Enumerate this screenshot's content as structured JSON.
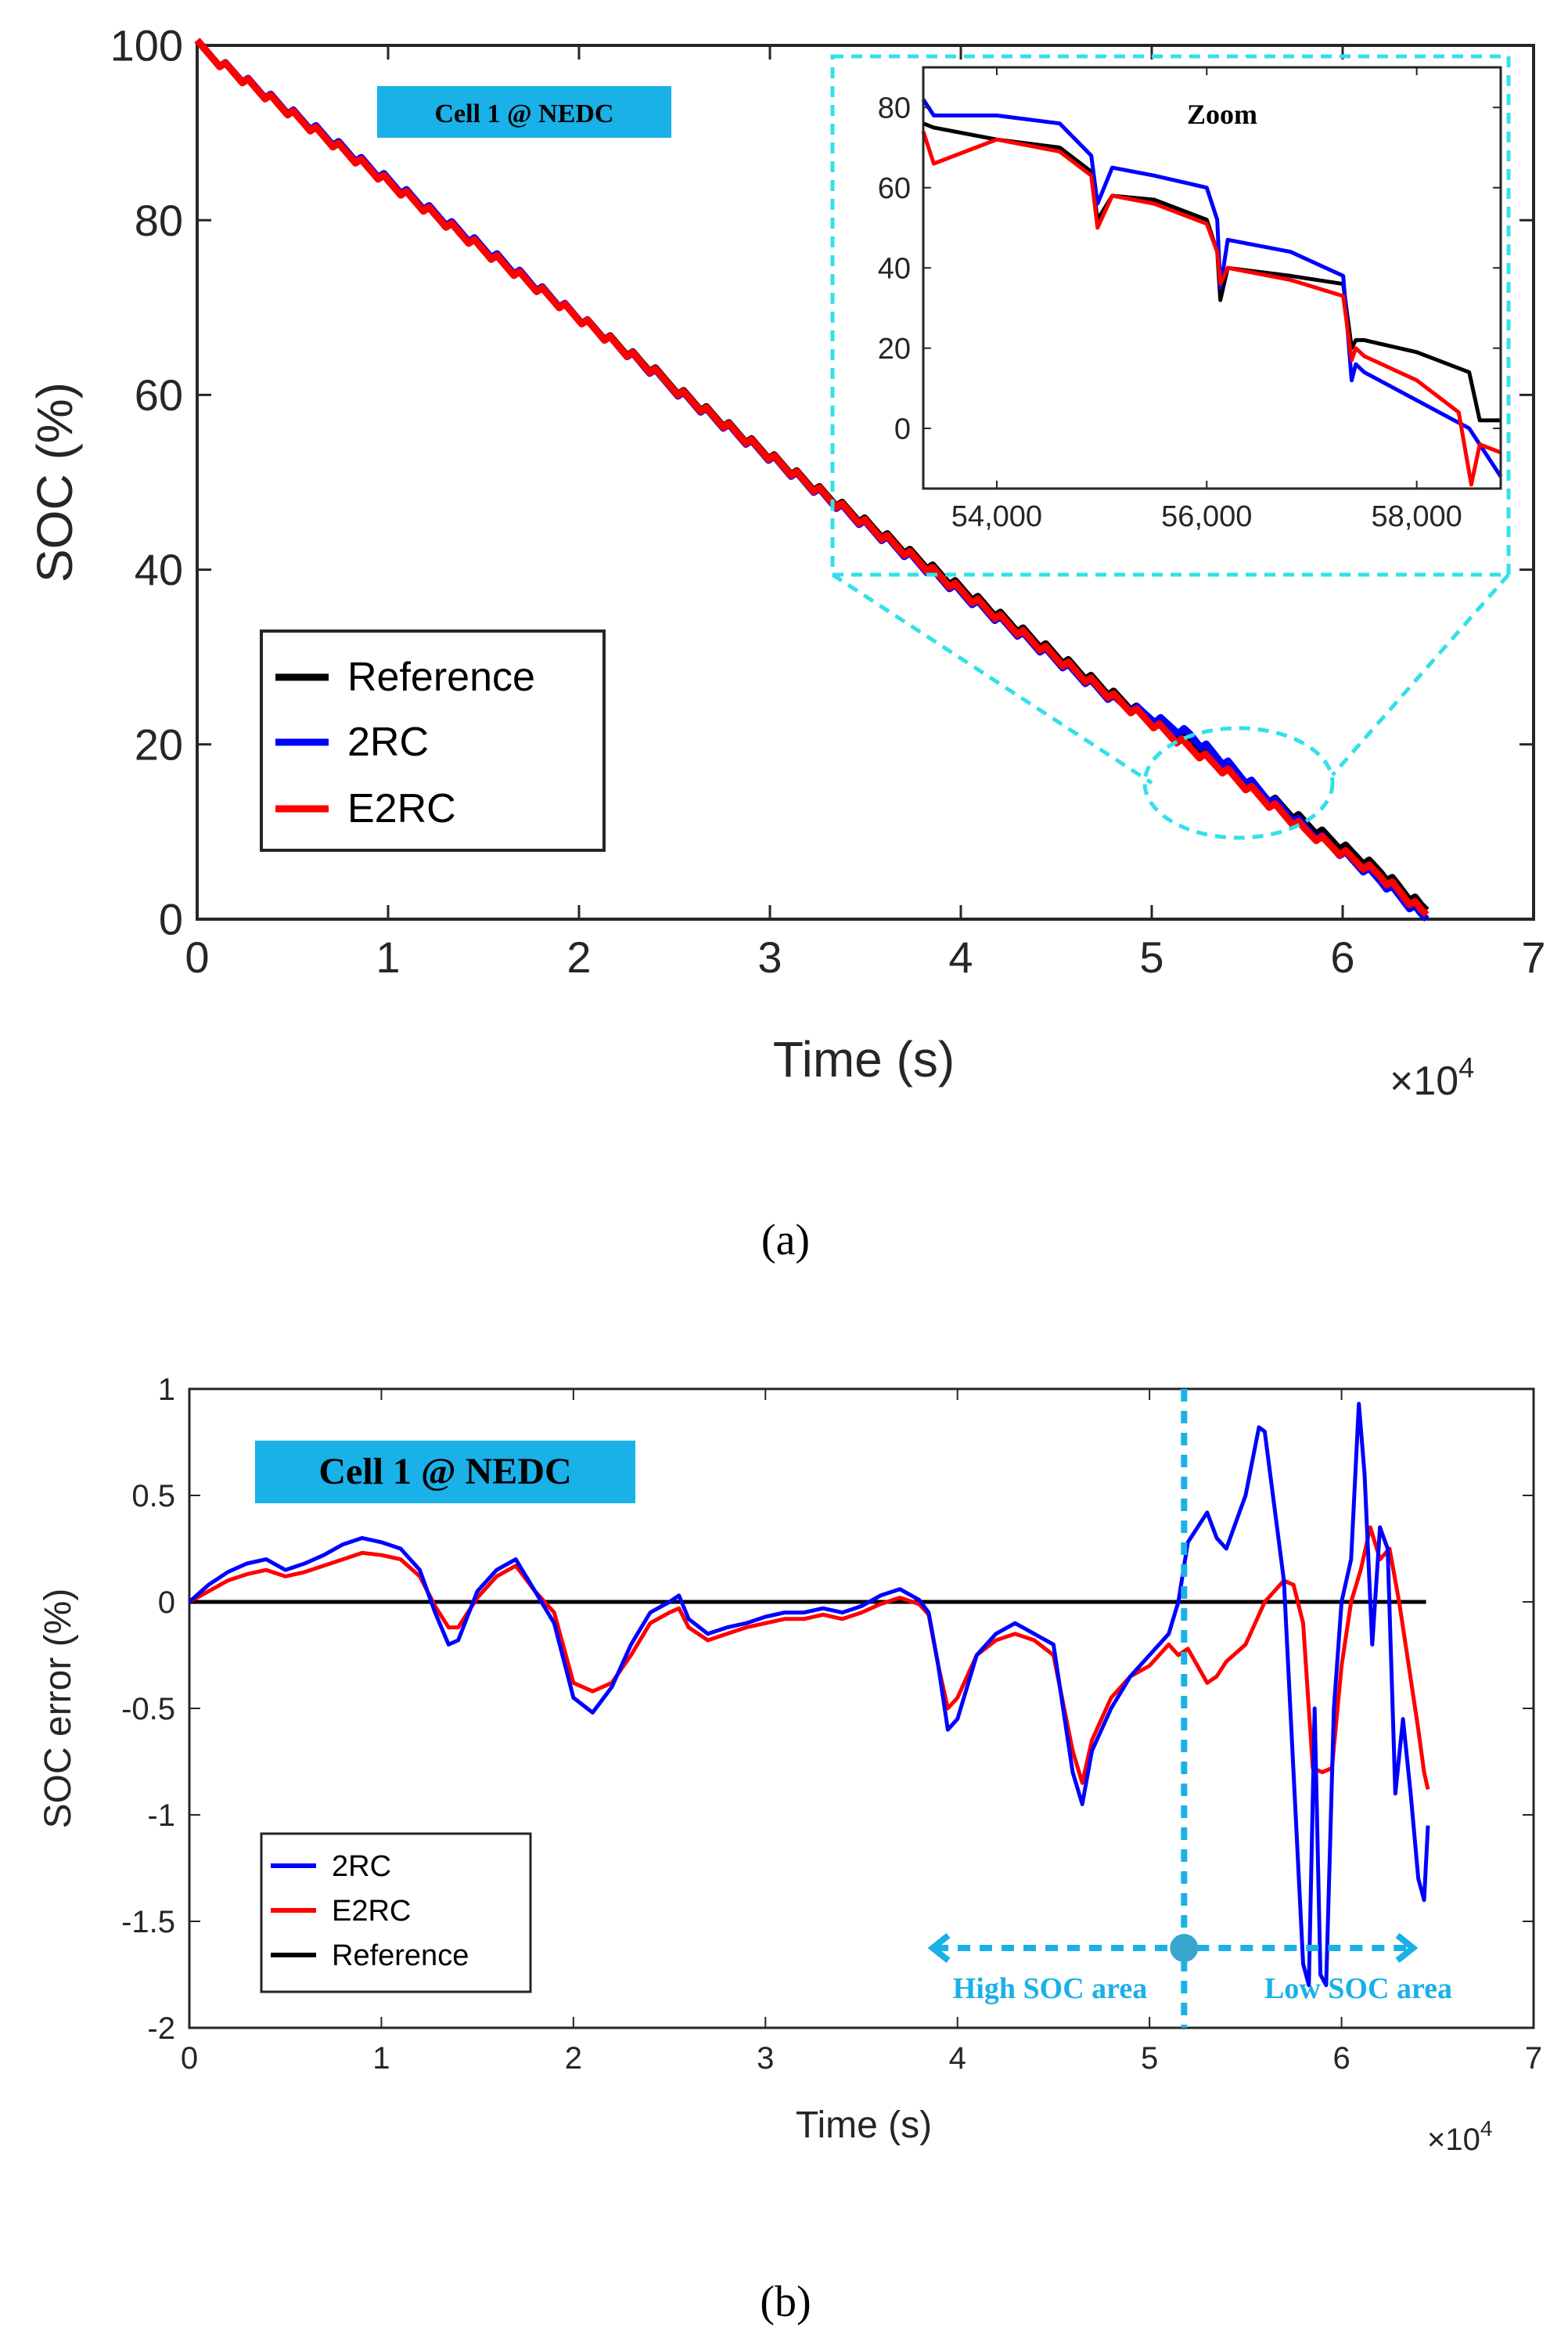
{
  "colors": {
    "reference": "#000000",
    "rc2": "#0000ff",
    "e2rc": "#ff0000",
    "zoom_box": "#33e0ea",
    "badge_bg": "#1ab0e8",
    "area_marker": "#1ab0e8",
    "area_text": "#1ab0e8"
  },
  "panel_a": {
    "caption": "(a)",
    "badge": "Cell 1 @ NEDC",
    "x_exponent_label": "×10",
    "x_exponent_power": "4",
    "legend": [
      "Reference",
      "2RC",
      "E2RC"
    ],
    "inset_title": "Zoom"
  },
  "panel_b": {
    "caption": "(b)",
    "badge": "Cell 1 @ NEDC",
    "x_exponent_label": "×10",
    "x_exponent_power": "4",
    "legend": [
      "2RC",
      "E2RC",
      "Reference"
    ],
    "divider_x": 51800,
    "high_label": "High SOC area",
    "low_label": "Low SOC area"
  },
  "chart_data": [
    {
      "id": "soc",
      "type": "line",
      "title": "",
      "xlabel": "Time (s)",
      "ylabel": "SOC (%)",
      "xlim": [
        0,
        70000
      ],
      "ylim": [
        0,
        100
      ],
      "xticks": [
        0,
        10000,
        20000,
        30000,
        40000,
        50000,
        60000,
        70000
      ],
      "xtick_labels": [
        "0",
        "1",
        "2",
        "3",
        "4",
        "5",
        "6",
        "7"
      ],
      "yticks": [
        0,
        20,
        40,
        60,
        80,
        100
      ],
      "ytick_labels": [
        "0",
        "20",
        "40",
        "60",
        "80",
        "100"
      ],
      "series": [
        {
          "name": "Reference",
          "x": [
            0,
            8000,
            16000,
            24000,
            32000,
            40000,
            48000,
            54000,
            58000,
            62000,
            64400
          ],
          "y": [
            100,
            87.5,
            75,
            62.5,
            50,
            37.8,
            25.5,
            17,
            11,
            5.5,
            1
          ]
        },
        {
          "name": "2RC",
          "x": [
            0,
            8000,
            16000,
            24000,
            32000,
            40000,
            48000,
            52000,
            54000,
            58000,
            62000,
            64400
          ],
          "y": [
            100,
            87.7,
            75.2,
            62.3,
            49.8,
            37.3,
            25,
            21,
            17.5,
            10.5,
            4.5,
            0
          ]
        },
        {
          "name": "E2RC",
          "x": [
            0,
            8000,
            16000,
            24000,
            32000,
            40000,
            48000,
            54000,
            58000,
            62000,
            64400
          ],
          "y": [
            100,
            87.5,
            75,
            62.4,
            49.9,
            37.5,
            25.2,
            16.6,
            10.2,
            5,
            0.5
          ]
        }
      ]
    },
    {
      "id": "soc_zoom",
      "type": "line",
      "title": "Zoom",
      "xlim": [
        53300,
        58800
      ],
      "ylim": [
        -15,
        90
      ],
      "xticks": [
        54000,
        56000,
        58000
      ],
      "xtick_labels": [
        "54,000",
        "56,000",
        "58,000"
      ],
      "yticks": [
        0,
        20,
        40,
        60,
        80
      ],
      "ytick_labels": [
        "0",
        "20",
        "40",
        "60",
        "80"
      ],
      "series": [
        {
          "name": "Reference",
          "x": [
            53300,
            53400,
            54000,
            54600,
            54900,
            54960,
            55100,
            55500,
            56000,
            56100,
            56130,
            56200,
            56800,
            57300,
            57380,
            57420,
            57500,
            58000,
            58500,
            58600,
            58800
          ],
          "y": [
            76,
            75,
            72,
            70,
            64,
            52,
            58,
            57,
            52,
            44,
            32,
            40,
            38,
            36,
            20,
            22,
            22,
            19,
            14,
            2,
            2
          ]
        },
        {
          "name": "2RC",
          "x": [
            53300,
            53400,
            54000,
            54600,
            54900,
            54960,
            55100,
            55500,
            56000,
            56100,
            56130,
            56200,
            56800,
            57300,
            57380,
            57420,
            57500,
            58000,
            58500,
            58700,
            58800
          ],
          "y": [
            82,
            78,
            78,
            76,
            68,
            56,
            65,
            63,
            60,
            52,
            35,
            47,
            44,
            38,
            12,
            16,
            14,
            7,
            0,
            -8,
            -12
          ]
        },
        {
          "name": "E2RC",
          "x": [
            53300,
            53400,
            54000,
            54600,
            54900,
            54960,
            55100,
            55500,
            56000,
            56100,
            56130,
            56200,
            56800,
            57300,
            57380,
            57420,
            57500,
            58000,
            58400,
            58520,
            58600,
            58800
          ],
          "y": [
            74,
            66,
            72,
            69,
            63,
            50,
            58,
            56,
            51,
            44,
            36,
            40,
            37,
            33,
            17,
            20,
            18,
            12,
            4,
            -14,
            -4,
            -6
          ]
        }
      ]
    },
    {
      "id": "soc_error",
      "type": "line",
      "title": "",
      "xlabel": "Time (s)",
      "ylabel": "SOC error (%)",
      "xlim": [
        0,
        70000
      ],
      "ylim": [
        -2,
        1
      ],
      "xticks": [
        0,
        10000,
        20000,
        30000,
        40000,
        50000,
        60000,
        70000
      ],
      "xtick_labels": [
        "0",
        "1",
        "2",
        "3",
        "4",
        "5",
        "6",
        "7"
      ],
      "yticks": [
        -2,
        -1.5,
        -1,
        -0.5,
        0,
        0.5,
        1
      ],
      "ytick_labels": [
        "-2",
        "-1.5",
        "-1",
        "-0.5",
        "0",
        "0.5",
        "1"
      ],
      "series": [
        {
          "name": "2RC",
          "x": [
            0,
            1000,
            2000,
            3000,
            4000,
            5000,
            6000,
            7000,
            8000,
            9000,
            10000,
            11000,
            12000,
            12800,
            13500,
            14000,
            15000,
            16000,
            17000,
            18000,
            19000,
            20000,
            21000,
            22000,
            23000,
            24000,
            25000,
            25500,
            26000,
            27000,
            28000,
            29000,
            30000,
            31000,
            32000,
            33000,
            34000,
            35000,
            36000,
            37000,
            38000,
            38500,
            39000,
            39500,
            40000,
            41000,
            42000,
            43000,
            44000,
            45000,
            46000,
            46500,
            47000,
            48000,
            49000,
            50000,
            51000,
            51500,
            52000,
            52500,
            53000,
            53500,
            54000,
            55000,
            55700,
            56000,
            57000,
            57500,
            58000,
            58300,
            58600,
            58900,
            59200,
            59600,
            60000,
            60500,
            60900,
            61200,
            61600,
            62000,
            62400,
            62800,
            63200,
            63600,
            64000,
            64300,
            64500
          ],
          "y": [
            0,
            0.08,
            0.14,
            0.18,
            0.2,
            0.15,
            0.18,
            0.22,
            0.27,
            0.3,
            0.28,
            0.25,
            0.15,
            -0.05,
            -0.2,
            -0.18,
            0.05,
            0.15,
            0.2,
            0.05,
            -0.1,
            -0.45,
            -0.52,
            -0.4,
            -0.2,
            -0.05,
            0.0,
            0.03,
            -0.08,
            -0.15,
            -0.12,
            -0.1,
            -0.07,
            -0.05,
            -0.05,
            -0.03,
            -0.05,
            -0.02,
            0.03,
            0.06,
            0.01,
            -0.05,
            -0.3,
            -0.6,
            -0.55,
            -0.25,
            -0.15,
            -0.1,
            -0.15,
            -0.2,
            -0.8,
            -0.95,
            -0.7,
            -0.5,
            -0.35,
            -0.25,
            -0.15,
            0.0,
            0.28,
            0.35,
            0.42,
            0.3,
            0.25,
            0.5,
            0.82,
            0.8,
            0.1,
            -0.8,
            -1.7,
            -1.8,
            -0.5,
            -1.75,
            -1.8,
            -0.5,
            0.0,
            0.2,
            0.93,
            0.6,
            -0.2,
            0.35,
            0.25,
            -0.9,
            -0.55,
            -0.9,
            -1.3,
            -1.4,
            -1.05
          ]
        },
        {
          "name": "E2RC",
          "x": [
            0,
            1000,
            2000,
            3000,
            4000,
            5000,
            6000,
            7000,
            8000,
            9000,
            10000,
            11000,
            12000,
            12800,
            13500,
            14000,
            15000,
            16000,
            17000,
            18000,
            19000,
            20000,
            21000,
            22000,
            23000,
            24000,
            25000,
            25500,
            26000,
            27000,
            28000,
            29000,
            30000,
            31000,
            32000,
            33000,
            34000,
            35000,
            36000,
            37000,
            38000,
            38500,
            39000,
            39500,
            40000,
            41000,
            42000,
            43000,
            44000,
            45000,
            46000,
            46500,
            47000,
            48000,
            49000,
            50000,
            51000,
            51500,
            52000,
            52500,
            53000,
            53500,
            54000,
            55000,
            56000,
            57000,
            57500,
            58000,
            58500,
            59000,
            59500,
            60000,
            60500,
            61000,
            61500,
            62000,
            62500,
            63000,
            63500,
            64000,
            64300,
            64500
          ],
          "y": [
            0,
            0.05,
            0.1,
            0.13,
            0.15,
            0.12,
            0.14,
            0.17,
            0.2,
            0.23,
            0.22,
            0.2,
            0.12,
            -0.02,
            -0.12,
            -0.12,
            0.02,
            0.12,
            0.17,
            0.05,
            -0.05,
            -0.38,
            -0.42,
            -0.38,
            -0.25,
            -0.1,
            -0.05,
            -0.03,
            -0.12,
            -0.18,
            -0.15,
            -0.12,
            -0.1,
            -0.08,
            -0.08,
            -0.06,
            -0.08,
            -0.05,
            -0.01,
            0.02,
            -0.01,
            -0.06,
            -0.3,
            -0.5,
            -0.45,
            -0.25,
            -0.18,
            -0.15,
            -0.18,
            -0.25,
            -0.7,
            -0.85,
            -0.65,
            -0.45,
            -0.35,
            -0.3,
            -0.2,
            -0.25,
            -0.22,
            -0.3,
            -0.38,
            -0.35,
            -0.28,
            -0.2,
            0.0,
            0.1,
            0.08,
            -0.1,
            -0.78,
            -0.8,
            -0.78,
            -0.3,
            0.0,
            0.15,
            0.35,
            0.2,
            0.25,
            0.0,
            -0.3,
            -0.6,
            -0.8,
            -0.88
          ]
        },
        {
          "name": "Reference",
          "x": [
            0,
            64400
          ],
          "y": [
            0,
            0
          ]
        }
      ]
    }
  ]
}
